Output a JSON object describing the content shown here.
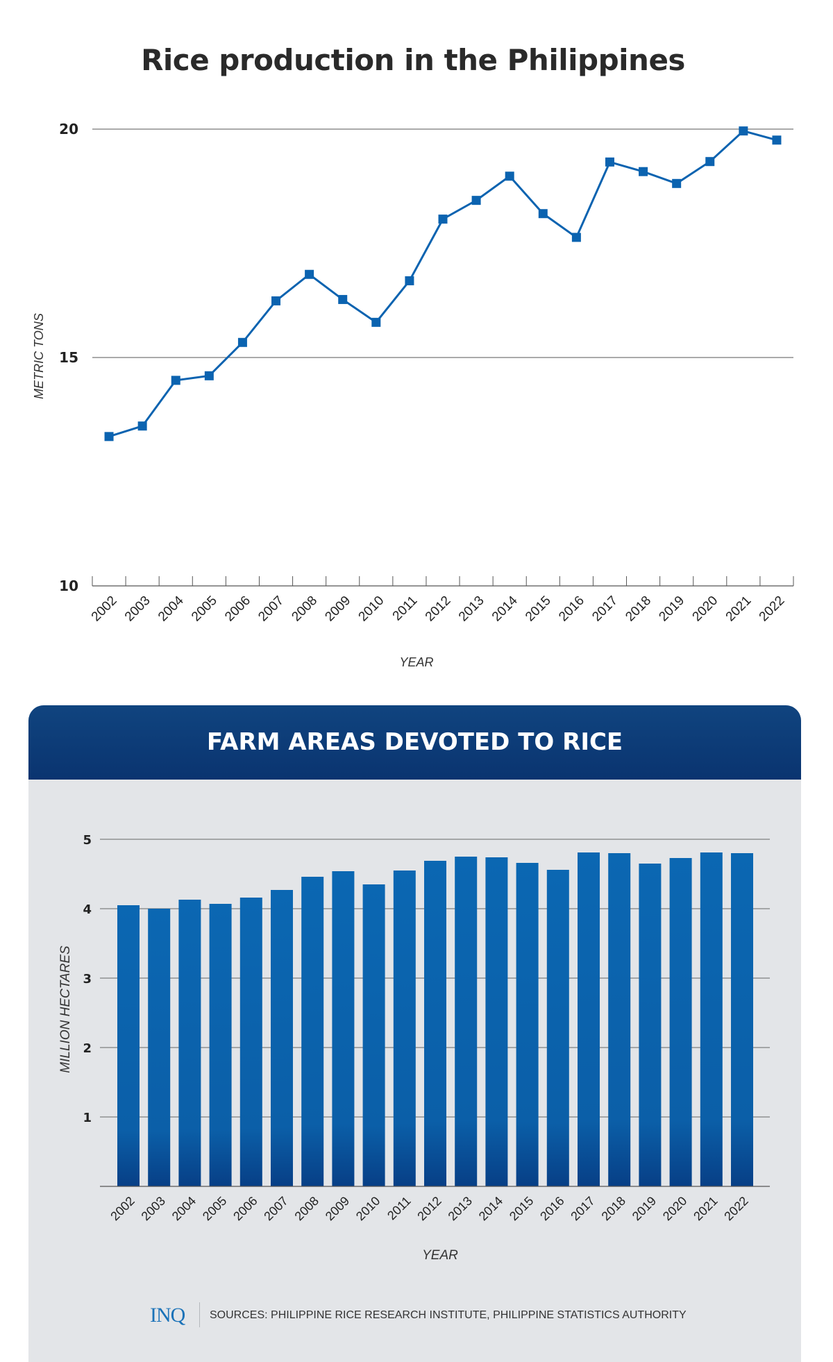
{
  "chart_data": [
    {
      "type": "line",
      "title": "Rice production in the Philippines",
      "xlabel": "YEAR",
      "ylabel": "METRIC TONS",
      "ylim": [
        10,
        20
      ],
      "yticks": [
        10,
        15,
        20
      ],
      "grid": true,
      "color": "#0b63b0",
      "categories": [
        "2002",
        "2003",
        "2004",
        "2005",
        "2006",
        "2007",
        "2008",
        "2009",
        "2010",
        "2011",
        "2012",
        "2013",
        "2014",
        "2015",
        "2016",
        "2017",
        "2018",
        "2019",
        "2020",
        "2021",
        "2022"
      ],
      "values": [
        13.27,
        13.5,
        14.5,
        14.6,
        15.33,
        16.24,
        16.82,
        16.27,
        15.77,
        16.68,
        18.03,
        18.44,
        18.97,
        18.15,
        17.63,
        19.28,
        19.07,
        18.81,
        19.29,
        19.96,
        19.76
      ]
    },
    {
      "type": "bar",
      "title": "FARM AREAS DEVOTED TO RICE",
      "xlabel": "YEAR",
      "ylabel": "MILLION HECTARES",
      "ylim": [
        0,
        5
      ],
      "yticks": [
        1,
        2,
        3,
        4,
        5
      ],
      "grid": true,
      "color": "#0b63b0",
      "categories": [
        "2002",
        "2003",
        "2004",
        "2005",
        "2006",
        "2007",
        "2008",
        "2009",
        "2010",
        "2011",
        "2012",
        "2013",
        "2014",
        "2015",
        "2016",
        "2017",
        "2018",
        "2019",
        "2020",
        "2021",
        "2022"
      ],
      "values": [
        4.05,
        4.0,
        4.13,
        4.07,
        4.16,
        4.27,
        4.46,
        4.54,
        4.35,
        4.55,
        4.69,
        4.75,
        4.74,
        4.66,
        4.56,
        4.81,
        4.8,
        4.65,
        4.73,
        4.81,
        4.8
      ]
    }
  ],
  "footer": {
    "logo": "INQ",
    "sources": "SOURCES: PHILIPPINE RICE RESEARCH INSTITUTE, PHILIPPINE STATISTICS AUTHORITY"
  }
}
